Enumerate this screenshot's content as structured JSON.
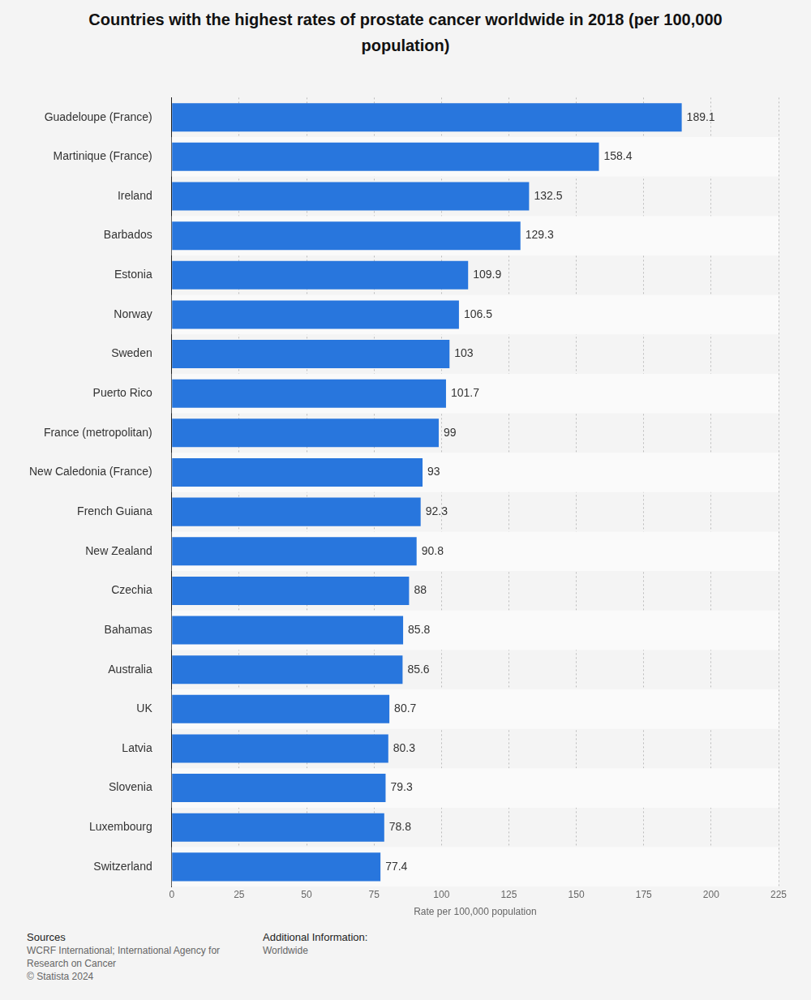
{
  "chart_data": {
    "type": "bar",
    "orientation": "horizontal",
    "title": "Countries with the highest rates of prostate cancer worldwide in 2018 (per 100,000 population)",
    "x_label": "Rate per 100,000 population",
    "categories": [
      "Guadeloupe (France)",
      "Martinique (France)",
      "Ireland",
      "Barbados",
      "Estonia",
      "Norway",
      "Sweden",
      "Puerto Rico",
      "France (metropolitan)",
      "New Caledonia (France)",
      "French Guiana",
      "New Zealand",
      "Czechia",
      "Bahamas",
      "Australia",
      "UK",
      "Latvia",
      "Slovenia",
      "Luxembourg",
      "Switzerland"
    ],
    "values": [
      189.1,
      158.4,
      132.5,
      129.3,
      109.9,
      106.5,
      103,
      101.7,
      99,
      93,
      92.3,
      90.8,
      88,
      85.8,
      85.6,
      80.7,
      80.3,
      79.3,
      78.8,
      77.4
    ],
    "color": "#2876dd",
    "xlim": [
      0,
      225
    ],
    "xticks": [
      0,
      25,
      50,
      75,
      100,
      125,
      150,
      175,
      200,
      225
    ],
    "grid": true,
    "data_labels": true
  },
  "footer": {
    "sources_title": "Sources",
    "sources": "WCRF International; International Agency for Research on Cancer",
    "copyright": "© Statista 2024",
    "info_title": "Additional Information:",
    "info": "Worldwide"
  }
}
